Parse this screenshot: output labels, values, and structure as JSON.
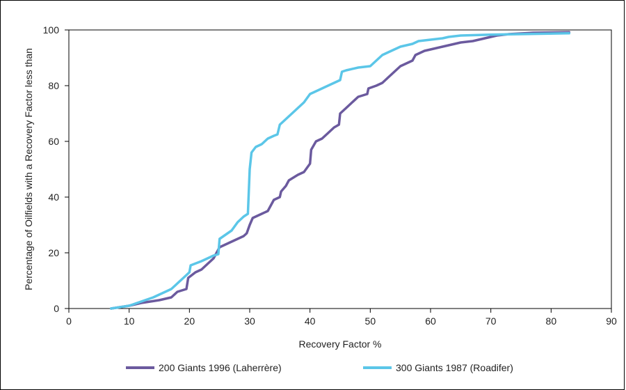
{
  "chart_data": {
    "type": "line",
    "xlabel": "Recovery Factor %",
    "ylabel": "Percentage of Oilfields with a Recovery Factor less than",
    "xlim": [
      0,
      90
    ],
    "ylim": [
      0,
      100
    ],
    "x_ticks": [
      "0",
      "10",
      "20",
      "30",
      "40",
      "50",
      "60",
      "70",
      "80",
      "90"
    ],
    "y_ticks": [
      "0",
      "20",
      "40",
      "60",
      "80",
      "100"
    ],
    "grid": false,
    "legend_position": "bottom",
    "series": [
      {
        "name": "200 Giants 1996 (Laherrère)",
        "color": "#6b5a9e",
        "points": [
          [
            7,
            0
          ],
          [
            10,
            1
          ],
          [
            12,
            2
          ],
          [
            15,
            3
          ],
          [
            17,
            4
          ],
          [
            18,
            6
          ],
          [
            19.5,
            7
          ],
          [
            19.8,
            11
          ],
          [
            21,
            13
          ],
          [
            22,
            14
          ],
          [
            24,
            18
          ],
          [
            25,
            22
          ],
          [
            27,
            24
          ],
          [
            29,
            26
          ],
          [
            29.5,
            27
          ],
          [
            30,
            30
          ],
          [
            30.5,
            32.5
          ],
          [
            32,
            34
          ],
          [
            33,
            35
          ],
          [
            34,
            39
          ],
          [
            35,
            40
          ],
          [
            35.2,
            42
          ],
          [
            36,
            44
          ],
          [
            36.5,
            46
          ],
          [
            38,
            48
          ],
          [
            39,
            49
          ],
          [
            40,
            52
          ],
          [
            40.2,
            57
          ],
          [
            41,
            60
          ],
          [
            42,
            61
          ],
          [
            43,
            63
          ],
          [
            44,
            65
          ],
          [
            44.8,
            66
          ],
          [
            45,
            70
          ],
          [
            46,
            72
          ],
          [
            47,
            74
          ],
          [
            48,
            76
          ],
          [
            49.5,
            77
          ],
          [
            49.7,
            79
          ],
          [
            51,
            80
          ],
          [
            52,
            81
          ],
          [
            53,
            83
          ],
          [
            54,
            85
          ],
          [
            55,
            87
          ],
          [
            57,
            89
          ],
          [
            57.5,
            91
          ],
          [
            59,
            92.5
          ],
          [
            60,
            93
          ],
          [
            62,
            94
          ],
          [
            63,
            94.5
          ],
          [
            64,
            95
          ],
          [
            65,
            95.5
          ],
          [
            67,
            96
          ],
          [
            68,
            96.5
          ],
          [
            69,
            97
          ],
          [
            70,
            97.5
          ],
          [
            71,
            98
          ],
          [
            73,
            98.5
          ],
          [
            77,
            99
          ],
          [
            83,
            99.2
          ]
        ]
      },
      {
        "name": "300 Giants 1987 (Roadifer)",
        "color": "#5bc6e8",
        "points": [
          [
            7,
            0
          ],
          [
            10,
            1
          ],
          [
            12,
            2.5
          ],
          [
            14,
            4
          ],
          [
            15,
            5
          ],
          [
            16,
            6
          ],
          [
            17,
            7
          ],
          [
            18,
            9
          ],
          [
            19,
            11
          ],
          [
            20,
            13
          ],
          [
            20.2,
            15.5
          ],
          [
            22,
            17
          ],
          [
            24,
            19
          ],
          [
            24.8,
            19.5
          ],
          [
            25,
            25
          ],
          [
            27,
            28
          ],
          [
            28,
            31
          ],
          [
            29,
            33
          ],
          [
            29.7,
            34
          ],
          [
            30,
            50
          ],
          [
            30.3,
            56
          ],
          [
            31,
            58
          ],
          [
            32,
            59
          ],
          [
            33,
            61
          ],
          [
            34,
            62
          ],
          [
            34.6,
            62.5
          ],
          [
            35,
            66
          ],
          [
            37,
            70
          ],
          [
            39,
            74
          ],
          [
            40,
            77
          ],
          [
            42,
            79
          ],
          [
            44,
            81
          ],
          [
            45,
            82
          ],
          [
            45.3,
            85
          ],
          [
            46,
            85.5
          ],
          [
            48,
            86.5
          ],
          [
            50,
            87
          ],
          [
            51,
            89
          ],
          [
            52,
            91
          ],
          [
            53,
            92
          ],
          [
            54,
            93
          ],
          [
            55,
            94
          ],
          [
            57,
            95
          ],
          [
            58,
            96
          ],
          [
            60,
            96.5
          ],
          [
            62,
            97
          ],
          [
            63,
            97.5
          ],
          [
            65,
            98
          ],
          [
            70,
            98.3
          ],
          [
            75,
            98.5
          ],
          [
            83,
            98.8
          ]
        ]
      }
    ]
  }
}
